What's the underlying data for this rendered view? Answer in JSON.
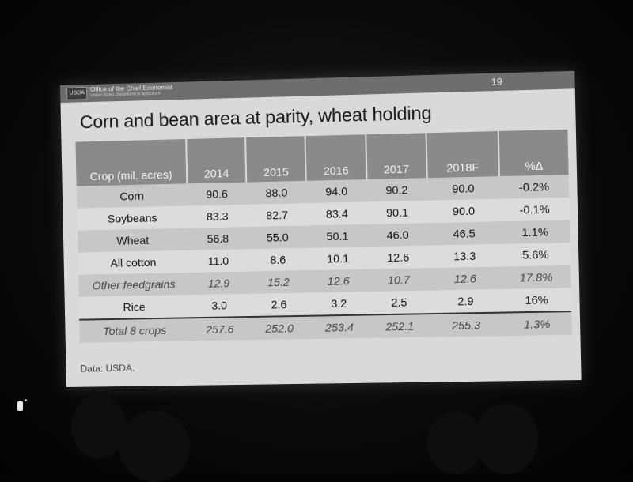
{
  "header": {
    "logo_text": "USDA",
    "office": "Office of the Chief Economist",
    "department": "United States Department of Agriculture",
    "slide_number": "19"
  },
  "title": "Corn and bean area at parity, wheat holding",
  "table": {
    "columns": [
      "Crop (mil. acres)",
      "2014",
      "2015",
      "2016",
      "2017",
      "2018F",
      "%Δ"
    ],
    "rows": [
      {
        "crop": "Corn",
        "values": [
          "90.6",
          "88.0",
          "94.0",
          "90.2",
          "90.0",
          "-0.2%"
        ],
        "style": "shade"
      },
      {
        "crop": "Soybeans",
        "values": [
          "83.3",
          "82.7",
          "83.4",
          "90.1",
          "90.0",
          "-0.1%"
        ],
        "style": "plain"
      },
      {
        "crop": "Wheat",
        "values": [
          "56.8",
          "55.0",
          "50.1",
          "46.0",
          "46.5",
          "1.1%"
        ],
        "style": "shade"
      },
      {
        "crop": "All cotton",
        "values": [
          "11.0",
          "8.6",
          "10.1",
          "12.6",
          "13.3",
          "5.6%"
        ],
        "style": "plain"
      },
      {
        "crop": "Other feedgrains",
        "values": [
          "12.9",
          "15.2",
          "12.6",
          "10.7",
          "12.6",
          "17.8%"
        ],
        "style": "shade ital"
      },
      {
        "crop": "Rice",
        "values": [
          "3.0",
          "2.6",
          "3.2",
          "2.5",
          "2.9",
          "16%"
        ],
        "style": "plain"
      },
      {
        "crop": "Total 8 crops",
        "values": [
          "257.6",
          "252.0",
          "253.4",
          "252.1",
          "255.3",
          "1.3%"
        ],
        "style": "shade ital last"
      }
    ]
  },
  "source": "Data: USDA."
}
